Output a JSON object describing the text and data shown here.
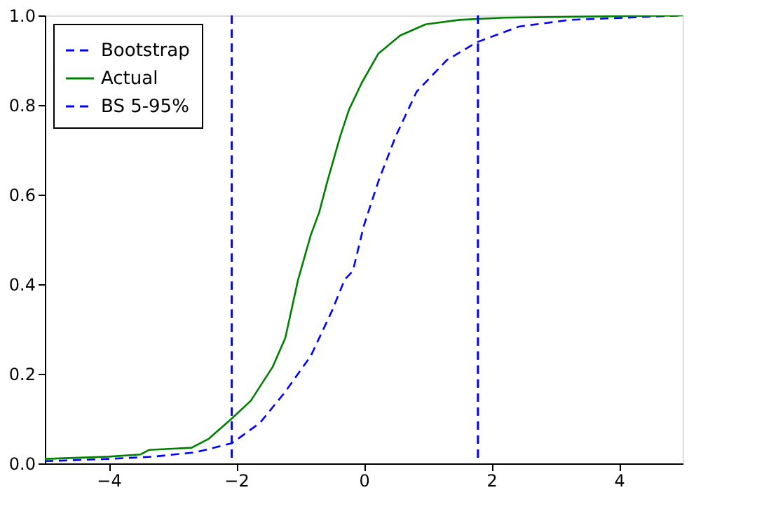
{
  "chart_data": {
    "type": "line",
    "xlim": [
      -5,
      5
    ],
    "xticks": [
      {
        "value": -4,
        "label": "−4"
      },
      {
        "value": -2,
        "label": "−2"
      },
      0,
      2,
      4
    ],
    "ylim": [
      0,
      1
    ],
    "yticks": [
      {
        "value": 0,
        "label": "0.0"
      },
      0.2,
      0.4,
      0.6,
      0.8,
      {
        "value": 1,
        "label": "1.0"
      }
    ],
    "grid": false,
    "legend": "top left",
    "series": [
      {
        "name": "Bootstrap",
        "color": "#0000ff",
        "line_style": "dashed",
        "x": [
          -5,
          -4,
          -3.3,
          -2.63,
          -2.07,
          -1.63,
          -1.23,
          -0.83,
          -0.5,
          -0.3,
          -0.17,
          0,
          0.23,
          0.5,
          0.83,
          1.3,
          1.77,
          2.43,
          3.23,
          5
        ],
        "values": [
          0.005,
          0.01,
          0.015,
          0.025,
          0.045,
          0.09,
          0.16,
          0.24,
          0.34,
          0.41,
          0.43,
          0.53,
          0.63,
          0.73,
          0.83,
          0.9,
          0.94,
          0.975,
          0.99,
          1.0
        ]
      },
      {
        "name": "Actual",
        "color": "#008000",
        "line_style": "solid",
        "x": [
          -5,
          -4,
          -3.5,
          -3.37,
          -2.7,
          -2.43,
          -2.07,
          -1.77,
          -1.43,
          -1.23,
          -1.03,
          -0.83,
          -0.7,
          -0.57,
          -0.37,
          -0.23,
          -0.03,
          0.23,
          0.57,
          0.97,
          1.5,
          2.2,
          5
        ],
        "values": [
          0.01,
          0.015,
          0.02,
          0.03,
          0.035,
          0.055,
          0.1,
          0.14,
          0.215,
          0.28,
          0.41,
          0.51,
          0.56,
          0.63,
          0.73,
          0.79,
          0.85,
          0.915,
          0.955,
          0.98,
          0.99,
          0.995,
          1.0
        ]
      }
    ],
    "ref_lines": [
      {
        "axis": "x",
        "value": -2.07,
        "label": "BS 5-95%",
        "color": "#0000ff",
        "line_style": "dashed"
      },
      {
        "axis": "x",
        "value": 1.79,
        "color": "#0000ff",
        "line_style": "dashed"
      }
    ]
  }
}
